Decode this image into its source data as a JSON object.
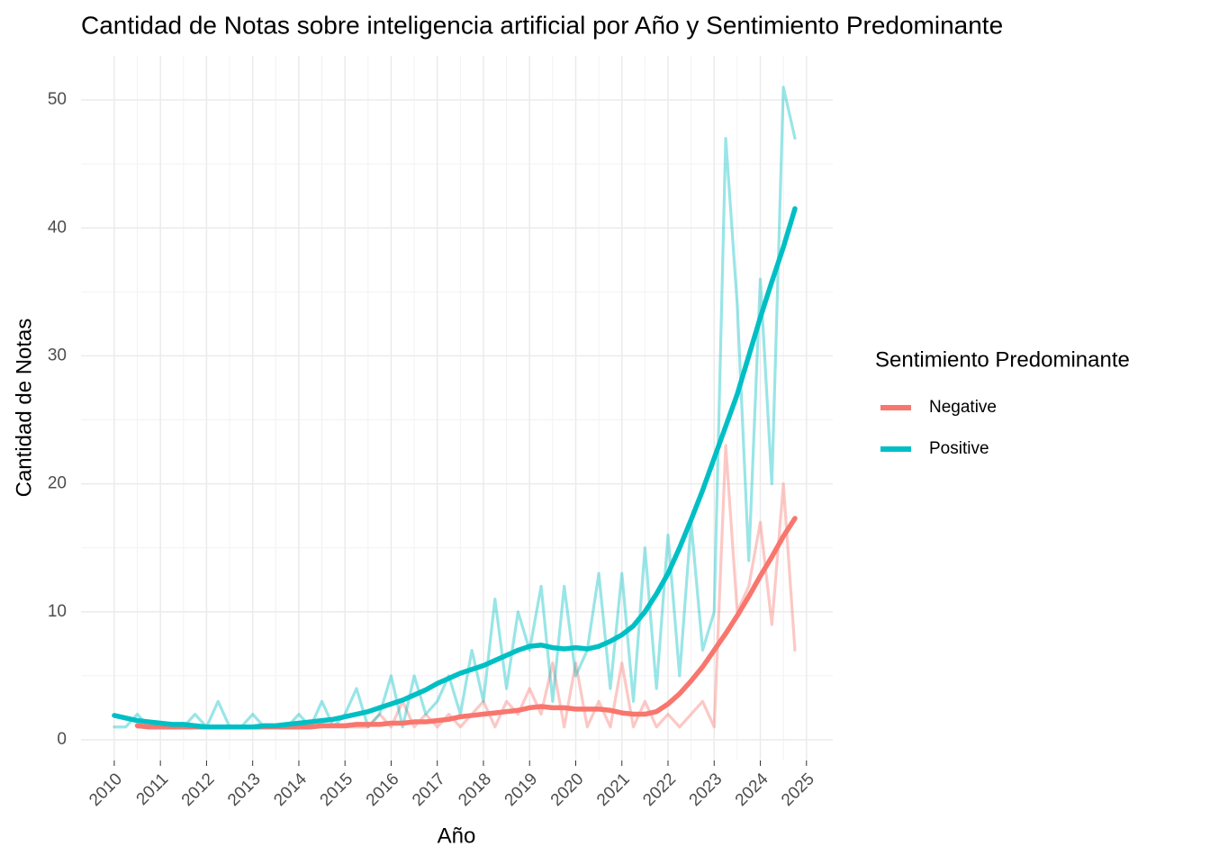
{
  "chart_data": {
    "type": "line",
    "title": "Cantidad de Notas sobre inteligencia artificial por Año y Sentimiento Predominante",
    "x_label": "Año",
    "y_label": "Cantidad de Notas",
    "legend_title": "Sentimiento Predominante",
    "legend_position": "right",
    "grid": true,
    "xlim": [
      2009.28,
      2025.57
    ],
    "ylim": [
      -1.62,
      53.45
    ],
    "xticks": [
      2010,
      2011,
      2012,
      2013,
      2014,
      2015,
      2016,
      2017,
      2018,
      2019,
      2020,
      2021,
      2022,
      2023,
      2024,
      2025
    ],
    "yticks": [
      0,
      10,
      20,
      30,
      40,
      50
    ],
    "x": [
      2010,
      2010.25,
      2010.5,
      2010.75,
      2011,
      2011.25,
      2011.5,
      2011.75,
      2012,
      2012.25,
      2012.5,
      2012.75,
      2013,
      2013.25,
      2013.5,
      2013.75,
      2014,
      2014.25,
      2014.5,
      2014.75,
      2015,
      2015.25,
      2015.5,
      2015.75,
      2016,
      2016.25,
      2016.5,
      2016.75,
      2017,
      2017.25,
      2017.5,
      2017.75,
      2018,
      2018.25,
      2018.5,
      2018.75,
      2019,
      2019.25,
      2019.5,
      2019.75,
      2020,
      2020.25,
      2020.5,
      2020.75,
      2021,
      2021.25,
      2021.5,
      2021.75,
      2022,
      2022.25,
      2022.5,
      2022.75,
      2023,
      2023.25,
      2023.5,
      2023.75,
      2024,
      2024.25,
      2024.5,
      2024.75
    ],
    "series": [
      {
        "name": "Negative",
        "color": "#F8766D",
        "values": [
          null,
          null,
          1,
          1,
          1,
          1,
          1,
          1,
          1,
          1,
          1,
          1,
          1,
          1,
          1,
          1,
          1,
          1,
          1,
          1,
          1,
          1,
          1,
          2,
          1,
          3,
          1,
          2,
          1,
          2,
          1,
          2,
          3,
          1,
          3,
          2,
          4,
          2,
          6,
          1,
          6,
          1,
          3,
          1,
          6,
          1,
          3,
          1,
          2,
          1,
          2,
          3,
          1,
          23,
          10,
          12,
          17,
          9,
          20,
          7
        ],
        "smooth_values": [
          null,
          null,
          1.1,
          1.0,
          1.0,
          1.0,
          1.0,
          1.0,
          1.0,
          1.0,
          1.0,
          1.0,
          1.0,
          1.0,
          1.0,
          1.0,
          1.0,
          1.0,
          1.1,
          1.1,
          1.1,
          1.2,
          1.2,
          1.2,
          1.3,
          1.3,
          1.4,
          1.4,
          1.5,
          1.6,
          1.8,
          1.9,
          2.0,
          2.1,
          2.2,
          2.3,
          2.5,
          2.6,
          2.5,
          2.5,
          2.4,
          2.4,
          2.4,
          2.3,
          2.1,
          2.0,
          2.0,
          2.2,
          2.8,
          3.6,
          4.6,
          5.7,
          7.0,
          8.3,
          9.7,
          11.2,
          12.8,
          14.3,
          15.9,
          17.3
        ]
      },
      {
        "name": "Positive",
        "color": "#00BFC4",
        "values": [
          1,
          1,
          2,
          1,
          1,
          1,
          1,
          2,
          1,
          3,
          1,
          1,
          2,
          1,
          1,
          1,
          2,
          1,
          3,
          1,
          2,
          4,
          1,
          2,
          5,
          1,
          5,
          2,
          3,
          5,
          2,
          7,
          3,
          11,
          4,
          10,
          7,
          12,
          3,
          12,
          5,
          7,
          13,
          4,
          13,
          3,
          15,
          4,
          16,
          5,
          17,
          7,
          10,
          47,
          34,
          14,
          36,
          20,
          51,
          47
        ],
        "smooth_values": [
          1.9,
          1.7,
          1.5,
          1.4,
          1.3,
          1.2,
          1.2,
          1.1,
          1.0,
          1.0,
          1.0,
          1.0,
          1.0,
          1.1,
          1.1,
          1.2,
          1.3,
          1.4,
          1.5,
          1.6,
          1.8,
          2.0,
          2.2,
          2.5,
          2.8,
          3.1,
          3.5,
          3.9,
          4.4,
          4.8,
          5.2,
          5.5,
          5.8,
          6.2,
          6.6,
          7.0,
          7.3,
          7.4,
          7.2,
          7.1,
          7.2,
          7.1,
          7.3,
          7.7,
          8.2,
          8.9,
          10.0,
          11.4,
          13.0,
          15.0,
          17.2,
          19.5,
          22.0,
          24.5,
          27.0,
          30.0,
          33.0,
          35.8,
          38.5,
          41.5
        ]
      }
    ]
  }
}
